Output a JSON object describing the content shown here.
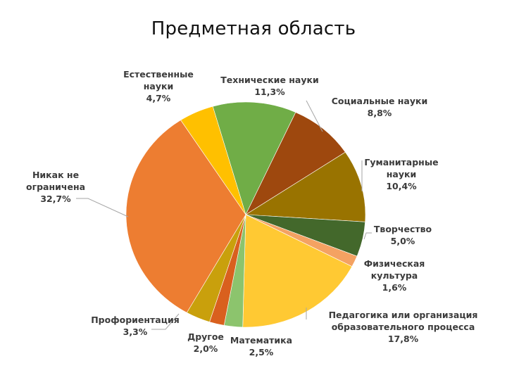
{
  "chart_data": {
    "type": "pie",
    "title": "Предметная область",
    "start_angle_deg": -16,
    "slices": [
      {
        "label": "Технические науки",
        "value": 11.3,
        "display": "11,3%",
        "color": "#70AD47"
      },
      {
        "label": "Социальные науки",
        "value": 8.8,
        "display": "8,8%",
        "color": "#9E480E"
      },
      {
        "label": "Гуманитарные науки",
        "value": 10.4,
        "display": "10,4%",
        "color": "#997300"
      },
      {
        "label": "Творчество",
        "value": 5.0,
        "display": "5,0%",
        "color": "#43682B"
      },
      {
        "label": "Физическая культура",
        "value": 1.6,
        "display": "1,6%",
        "color": "#F4A262"
      },
      {
        "label": "Педагогика или организация образовательного процесса",
        "value": 17.8,
        "display": "17,8%",
        "color": "#FFC933"
      },
      {
        "label": "Математика",
        "value": 2.5,
        "display": "2,5%",
        "color": "#8CC46D"
      },
      {
        "label": "Другое",
        "value": 2.0,
        "display": "2,0%",
        "color": "#D9601E"
      },
      {
        "label": "Профориентация",
        "value": 3.3,
        "display": "3,3%",
        "color": "#C9A00C"
      },
      {
        "label": "Никак не ограничена",
        "value": 32.7,
        "display": "32,7%",
        "color": "#ED7D31"
      },
      {
        "label": "Естественные науки",
        "value": 4.7,
        "display": "4,7%",
        "color": "#FFC000"
      }
    ]
  },
  "labels": {
    "technical": {
      "line1": "Технические науки",
      "pct": "11,3%"
    },
    "social": {
      "line1": "Социальные науки",
      "pct": "8,8%"
    },
    "humanities": {
      "line1": "Гуманитарные",
      "line2": "науки",
      "pct": "10,4%"
    },
    "creativity": {
      "line1": "Творчество",
      "pct": "5,0%"
    },
    "physical": {
      "line1": "Физическая",
      "line2": "культура",
      "pct": "1,6%"
    },
    "pedagogy": {
      "line1": "Педагогика или организация",
      "line2": "образовательного процесса",
      "pct": "17,8%"
    },
    "math": {
      "line1": "Математика",
      "pct": "2,5%"
    },
    "other": {
      "line1": "Другое",
      "pct": "2,0%"
    },
    "career": {
      "line1": "Профориентация",
      "pct": "3,3%"
    },
    "unlimited": {
      "line1": "Никак не",
      "line2": "ограничена",
      "pct": "32,7%"
    },
    "natural": {
      "line1": "Естественные",
      "line2": "науки",
      "pct": "4,7%"
    }
  }
}
